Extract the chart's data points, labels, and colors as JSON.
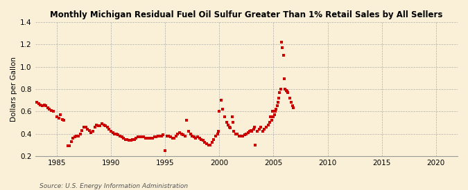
{
  "title": "Monthly Michigan Residual Fuel Oil Sulfur Greater Than 1% Retail Sales by All Sellers",
  "ylabel": "Dollars per Gallon",
  "source": "Source: U.S. Energy Information Administration",
  "background_color": "#FAF0D7",
  "dot_color": "#CC0000",
  "xlim": [
    1983.0,
    2022.0
  ],
  "ylim": [
    0.2,
    1.4
  ],
  "xticks": [
    1985,
    1990,
    1995,
    2000,
    2005,
    2010,
    2015,
    2020
  ],
  "yticks": [
    0.2,
    0.4,
    0.6,
    0.8,
    1.0,
    1.2,
    1.4
  ],
  "data": [
    [
      1983.17,
      0.68
    ],
    [
      1983.33,
      0.67
    ],
    [
      1983.5,
      0.66
    ],
    [
      1983.67,
      0.65
    ],
    [
      1983.83,
      0.66
    ],
    [
      1984.0,
      0.65
    ],
    [
      1984.17,
      0.63
    ],
    [
      1984.33,
      0.62
    ],
    [
      1984.5,
      0.61
    ],
    [
      1984.67,
      0.6
    ],
    [
      1985.0,
      0.55
    ],
    [
      1985.17,
      0.54
    ],
    [
      1985.33,
      0.57
    ],
    [
      1985.5,
      0.53
    ],
    [
      1985.67,
      0.52
    ],
    [
      1986.0,
      0.29
    ],
    [
      1986.17,
      0.29
    ],
    [
      1986.33,
      0.33
    ],
    [
      1986.5,
      0.36
    ],
    [
      1986.67,
      0.37
    ],
    [
      1986.83,
      0.38
    ],
    [
      1987.0,
      0.38
    ],
    [
      1987.17,
      0.4
    ],
    [
      1987.33,
      0.43
    ],
    [
      1987.5,
      0.46
    ],
    [
      1987.67,
      0.46
    ],
    [
      1987.83,
      0.44
    ],
    [
      1988.0,
      0.43
    ],
    [
      1988.17,
      0.41
    ],
    [
      1988.33,
      0.42
    ],
    [
      1988.5,
      0.46
    ],
    [
      1988.67,
      0.48
    ],
    [
      1988.83,
      0.47
    ],
    [
      1989.0,
      0.47
    ],
    [
      1989.17,
      0.49
    ],
    [
      1989.33,
      0.48
    ],
    [
      1989.5,
      0.47
    ],
    [
      1989.67,
      0.46
    ],
    [
      1989.83,
      0.44
    ],
    [
      1990.0,
      0.42
    ],
    [
      1990.17,
      0.41
    ],
    [
      1990.33,
      0.4
    ],
    [
      1990.5,
      0.4
    ],
    [
      1990.67,
      0.39
    ],
    [
      1990.83,
      0.38
    ],
    [
      1991.0,
      0.37
    ],
    [
      1991.17,
      0.36
    ],
    [
      1991.33,
      0.35
    ],
    [
      1991.5,
      0.35
    ],
    [
      1991.67,
      0.34
    ],
    [
      1991.83,
      0.34
    ],
    [
      1992.0,
      0.35
    ],
    [
      1992.17,
      0.35
    ],
    [
      1992.33,
      0.36
    ],
    [
      1992.5,
      0.37
    ],
    [
      1992.67,
      0.37
    ],
    [
      1992.83,
      0.37
    ],
    [
      1993.0,
      0.37
    ],
    [
      1993.17,
      0.36
    ],
    [
      1993.33,
      0.36
    ],
    [
      1993.5,
      0.36
    ],
    [
      1993.67,
      0.36
    ],
    [
      1993.83,
      0.36
    ],
    [
      1994.0,
      0.37
    ],
    [
      1994.17,
      0.37
    ],
    [
      1994.33,
      0.38
    ],
    [
      1994.5,
      0.38
    ],
    [
      1994.67,
      0.38
    ],
    [
      1994.83,
      0.39
    ],
    [
      1995.0,
      0.25
    ],
    [
      1995.17,
      0.38
    ],
    [
      1995.33,
      0.38
    ],
    [
      1995.5,
      0.37
    ],
    [
      1995.67,
      0.36
    ],
    [
      1995.83,
      0.36
    ],
    [
      1996.0,
      0.38
    ],
    [
      1996.17,
      0.4
    ],
    [
      1996.33,
      0.41
    ],
    [
      1996.5,
      0.4
    ],
    [
      1996.67,
      0.39
    ],
    [
      1996.83,
      0.38
    ],
    [
      1997.0,
      0.52
    ],
    [
      1997.17,
      0.42
    ],
    [
      1997.33,
      0.4
    ],
    [
      1997.5,
      0.38
    ],
    [
      1997.67,
      0.37
    ],
    [
      1997.83,
      0.36
    ],
    [
      1998.0,
      0.37
    ],
    [
      1998.17,
      0.36
    ],
    [
      1998.33,
      0.35
    ],
    [
      1998.5,
      0.34
    ],
    [
      1998.67,
      0.32
    ],
    [
      1998.83,
      0.31
    ],
    [
      1999.0,
      0.3
    ],
    [
      1999.17,
      0.3
    ],
    [
      1999.33,
      0.32
    ],
    [
      1999.5,
      0.35
    ],
    [
      1999.67,
      0.38
    ],
    [
      1999.83,
      0.4
    ],
    [
      2000.0,
      0.6
    ],
    [
      2000.17,
      0.7
    ],
    [
      2000.33,
      0.62
    ],
    [
      2000.5,
      0.55
    ],
    [
      2000.67,
      0.5
    ],
    [
      2000.83,
      0.48
    ],
    [
      2001.0,
      0.45
    ],
    [
      2001.17,
      0.55
    ],
    [
      2001.33,
      0.42
    ],
    [
      2001.5,
      0.4
    ],
    [
      2001.67,
      0.4
    ],
    [
      2001.83,
      0.38
    ],
    [
      2002.0,
      0.38
    ],
    [
      2002.17,
      0.38
    ],
    [
      2002.33,
      0.39
    ],
    [
      2002.5,
      0.4
    ],
    [
      2002.67,
      0.41
    ],
    [
      2002.83,
      0.42
    ],
    [
      2003.0,
      0.42
    ],
    [
      2003.17,
      0.44
    ],
    [
      2003.33,
      0.3
    ],
    [
      2003.5,
      0.42
    ],
    [
      2003.67,
      0.44
    ],
    [
      2003.83,
      0.46
    ],
    [
      2004.0,
      0.42
    ],
    [
      2004.17,
      0.44
    ],
    [
      2004.33,
      0.46
    ],
    [
      2004.5,
      0.48
    ],
    [
      2004.67,
      0.5
    ],
    [
      2004.83,
      0.52
    ],
    [
      2005.0,
      0.55
    ],
    [
      2005.08,
      0.57
    ],
    [
      2005.17,
      0.6
    ],
    [
      2005.25,
      0.62
    ],
    [
      2005.33,
      0.65
    ],
    [
      2005.42,
      0.68
    ],
    [
      2005.5,
      0.72
    ],
    [
      2005.58,
      0.77
    ],
    [
      2005.67,
      0.8
    ],
    [
      2005.75,
      1.22
    ],
    [
      2005.83,
      1.17
    ],
    [
      2005.92,
      1.1
    ],
    [
      2006.0,
      0.89
    ],
    [
      2006.08,
      0.8
    ],
    [
      2006.17,
      0.79
    ],
    [
      2006.25,
      0.78
    ],
    [
      2006.33,
      0.77
    ],
    [
      2006.5,
      0.72
    ],
    [
      2006.67,
      0.68
    ],
    [
      2006.75,
      0.65
    ],
    [
      2006.83,
      0.63
    ],
    [
      2004.92,
      0.6
    ],
    [
      2004.75,
      0.55
    ],
    [
      2003.25,
      0.46
    ],
    [
      2002.92,
      0.43
    ],
    [
      2001.25,
      0.5
    ],
    [
      2000.92,
      0.46
    ],
    [
      1999.92,
      0.42
    ]
  ]
}
